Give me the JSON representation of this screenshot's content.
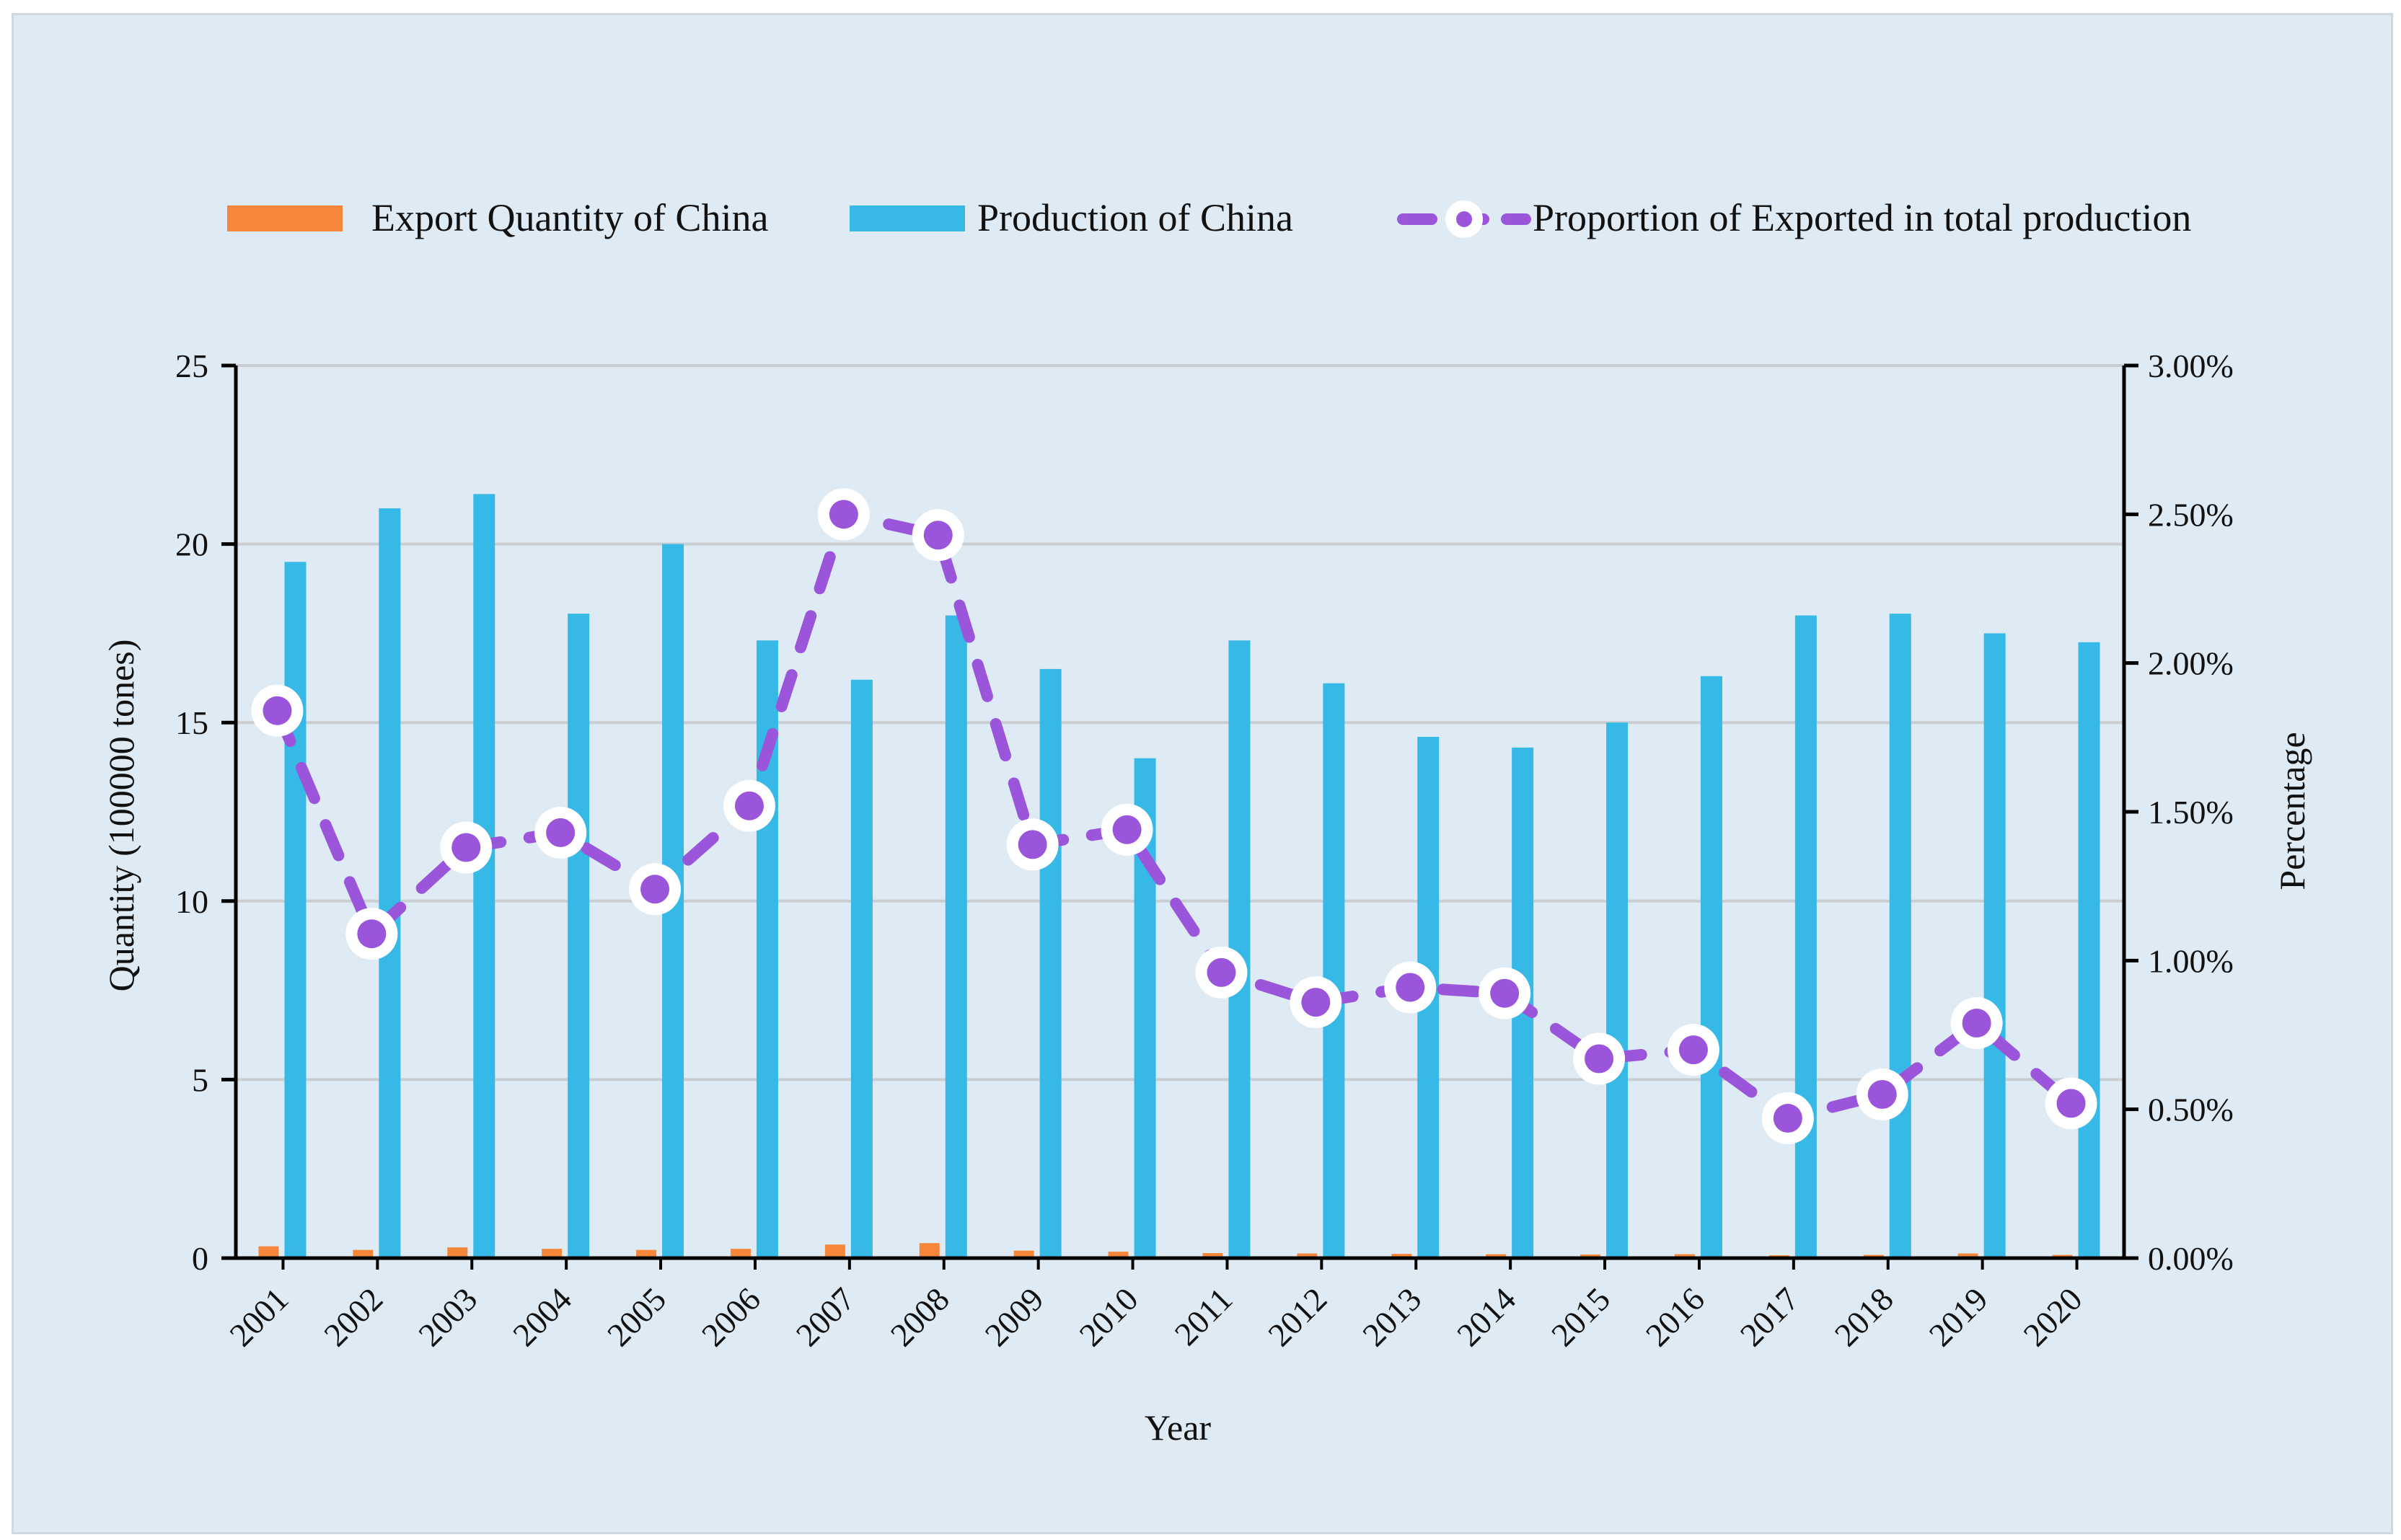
{
  "chart_data": {
    "type": "bar+line",
    "title": "",
    "xlabel": "Year",
    "ylabel_left": "Quantity (100000 tones)",
    "ylabel_right": "Percentage",
    "ylim_left": [
      0,
      25
    ],
    "ylim_right": [
      0,
      0.03
    ],
    "left_ticks": [
      "0",
      "5",
      "10",
      "15",
      "20",
      "25"
    ],
    "right_ticks": [
      "0.00%",
      "0.50%",
      "1.00%",
      "1.50%",
      "2.00%",
      "2.50%",
      "3.00%"
    ],
    "categories": [
      "2001",
      "2002",
      "2003",
      "2004",
      "2005",
      "2006",
      "2007",
      "2008",
      "2009",
      "2010",
      "2011",
      "2012",
      "2013",
      "2014",
      "2015",
      "2016",
      "2017",
      "2018",
      "2019",
      "2020"
    ],
    "series": [
      {
        "name": "Export Quantity of China",
        "type": "bar",
        "axis": "left",
        "color": "#f5863a",
        "values": [
          0.33,
          0.23,
          0.3,
          0.26,
          0.23,
          0.26,
          0.38,
          0.42,
          0.21,
          0.18,
          0.14,
          0.13,
          0.12,
          0.11,
          0.1,
          0.11,
          0.08,
          0.09,
          0.13,
          0.09
        ]
      },
      {
        "name": "Production of China",
        "type": "bar",
        "axis": "left",
        "color": "#36b9e6",
        "values": [
          19.5,
          21.0,
          21.4,
          18.05,
          20.0,
          17.3,
          16.2,
          18.0,
          16.5,
          14.0,
          17.3,
          16.1,
          14.6,
          14.3,
          15.0,
          16.3,
          18.0,
          18.05,
          17.5,
          17.25
        ]
      },
      {
        "name": "Proportion of Exported in total production",
        "type": "line",
        "axis": "right",
        "color": "#9b55db",
        "values": [
          0.0184,
          0.0109,
          0.0138,
          0.0143,
          0.0124,
          0.0152,
          0.025,
          0.0243,
          0.0139,
          0.0144,
          0.0096,
          0.0086,
          0.0091,
          0.0089,
          0.0067,
          0.007,
          0.0047,
          0.0055,
          0.0079,
          0.0052
        ]
      }
    ],
    "legend_position": "top"
  }
}
